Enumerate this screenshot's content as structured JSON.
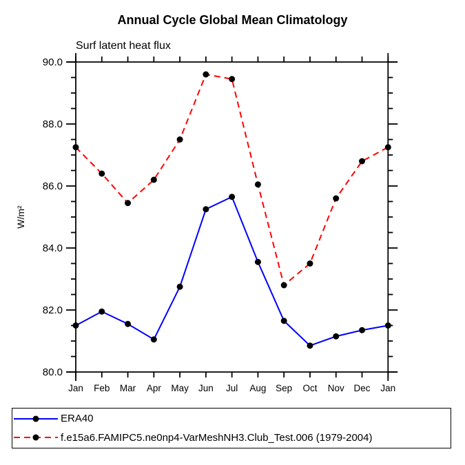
{
  "title": "Annual Cycle Global Mean Climatology",
  "subtitle": "Surf latent heat flux",
  "ylabel": "W/m²",
  "chart_data": {
    "type": "line",
    "categories": [
      "Jan",
      "Feb",
      "Mar",
      "Apr",
      "May",
      "Jun",
      "Jul",
      "Aug",
      "Sep",
      "Oct",
      "Nov",
      "Dec",
      "Jan"
    ],
    "series": [
      {
        "name": "ERA40",
        "color": "#0000ff",
        "line_style": "solid",
        "marker": "filled-circle",
        "marker_color": "#000000",
        "values": [
          81.5,
          81.95,
          81.55,
          81.05,
          82.75,
          85.25,
          85.65,
          83.55,
          81.65,
          80.85,
          81.15,
          81.35,
          81.5
        ]
      },
      {
        "name": "f.e15a6.FAMIPC5.ne0np4-VarMeshNH3.Club_Test.006 (1979-2004)",
        "color": "#ff0000",
        "line_style": "dashed",
        "marker": "filled-circle",
        "marker_color": "#000000",
        "values": [
          87.25,
          86.4,
          85.45,
          86.2,
          87.5,
          89.6,
          89.45,
          86.05,
          82.8,
          83.5,
          85.6,
          86.8,
          87.25
        ]
      }
    ],
    "xlabel": "",
    "ylabel": "W/m²",
    "ylim": [
      80.0,
      90.0
    ],
    "ytick_major": [
      80,
      82,
      84,
      86,
      88,
      90
    ],
    "ytick_labels": [
      "80.0",
      "82.0",
      "84.0",
      "86.0",
      "88.0",
      "90.0"
    ],
    "ytick_minor_step": 0.5,
    "grid": false,
    "legend_position": "bottom-left-box"
  }
}
